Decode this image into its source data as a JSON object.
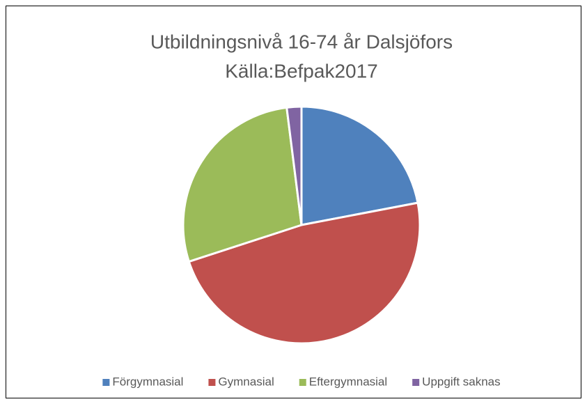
{
  "chart_data": {
    "type": "pie",
    "title": "Utbildningsnivå 16-74 år Dalsjöfors",
    "subtitle": "Källa:Befpak2017",
    "categories": [
      "Förgymnasial",
      "Gymnasial",
      "Eftergymnasial",
      "Uppgift saknas"
    ],
    "values": [
      22,
      48,
      28,
      2
    ],
    "colors": [
      "#4f81bd",
      "#c0504d",
      "#9bbb59",
      "#8064a2"
    ],
    "legend": "bottom"
  }
}
